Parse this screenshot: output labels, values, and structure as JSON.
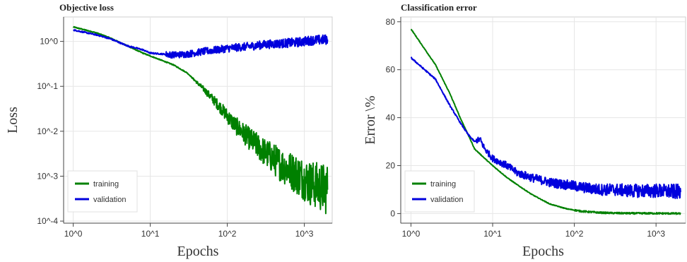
{
  "chart_data": [
    {
      "type": "line",
      "title": "Objective loss",
      "xlabel": "Epochs",
      "ylabel": "Loss",
      "x_scale": "log",
      "y_scale": "log",
      "xlim": [
        0.75,
        2300
      ],
      "ylim": [
        9e-05,
        3.5
      ],
      "x_ticks": [
        {
          "value": 1,
          "label": "10^0"
        },
        {
          "value": 10,
          "label": "10^1"
        },
        {
          "value": 100,
          "label": "10^2"
        },
        {
          "value": 1000,
          "label": "10^3"
        }
      ],
      "y_ticks": [
        {
          "value": 1,
          "label": "10^0"
        },
        {
          "value": 0.1,
          "label": "10^-1"
        },
        {
          "value": 0.01,
          "label": "10^-2"
        },
        {
          "value": 0.001,
          "label": "10^-3"
        },
        {
          "value": 0.0001,
          "label": "10^-4"
        }
      ],
      "grid": true,
      "legend_position": "bottom-left",
      "series": [
        {
          "name": "training",
          "color": "#008000",
          "x": [
            1,
            2,
            3,
            5,
            8,
            12,
            20,
            30,
            50,
            80,
            120,
            200,
            300,
            500,
            800,
            1200,
            2000
          ],
          "y": [
            2.1,
            1.55,
            1.2,
            0.8,
            0.55,
            0.42,
            0.3,
            0.2,
            0.085,
            0.035,
            0.015,
            0.0065,
            0.0035,
            0.0018,
            0.0011,
            0.0007,
            0.0005
          ]
        },
        {
          "name": "validation",
          "color": "#0000dd",
          "x": [
            1,
            2,
            3,
            5,
            8,
            10,
            15,
            20,
            30,
            50,
            80,
            100,
            200,
            300,
            500,
            800,
            1200,
            2000
          ],
          "y": [
            1.8,
            1.4,
            1.15,
            0.8,
            0.65,
            0.55,
            0.52,
            0.5,
            0.52,
            0.6,
            0.66,
            0.7,
            0.78,
            0.85,
            0.9,
            0.95,
            1.05,
            1.1
          ]
        }
      ]
    },
    {
      "type": "line",
      "title": "Classification error",
      "xlabel": "Epochs",
      "ylabel": "Error \\%",
      "x_scale": "log",
      "y_scale": "linear",
      "xlim": [
        0.75,
        2300
      ],
      "ylim": [
        -4,
        82
      ],
      "x_ticks": [
        {
          "value": 1,
          "label": "10^0"
        },
        {
          "value": 10,
          "label": "10^1"
        },
        {
          "value": 100,
          "label": "10^2"
        },
        {
          "value": 1000,
          "label": "10^3"
        }
      ],
      "y_ticks": [
        {
          "value": 0,
          "label": "0"
        },
        {
          "value": 20,
          "label": "20"
        },
        {
          "value": 40,
          "label": "40"
        },
        {
          "value": 60,
          "label": "60"
        },
        {
          "value": 80,
          "label": "80"
        }
      ],
      "grid": true,
      "legend_position": "bottom-left",
      "series": [
        {
          "name": "training",
          "color": "#008000",
          "x": [
            1,
            2,
            3,
            4,
            5,
            6,
            8,
            10,
            15,
            20,
            30,
            50,
            80,
            120,
            200,
            300,
            500,
            1000,
            2000
          ],
          "y": [
            77,
            62,
            50,
            40,
            33,
            27,
            23,
            20,
            15,
            12,
            8,
            4,
            2,
            1,
            0.4,
            0.2,
            0.1,
            0.1,
            0
          ]
        },
        {
          "name": "validation",
          "color": "#0000dd",
          "x": [
            1,
            2,
            3,
            4,
            5,
            6,
            7,
            8,
            10,
            15,
            20,
            30,
            50,
            80,
            120,
            200,
            300,
            500,
            1000,
            2000
          ],
          "y": [
            65,
            56,
            45,
            38,
            33,
            30,
            31,
            27,
            23,
            20,
            17,
            15,
            13,
            12,
            11,
            10,
            10,
            9.5,
            9.5,
            9
          ]
        }
      ]
    }
  ]
}
